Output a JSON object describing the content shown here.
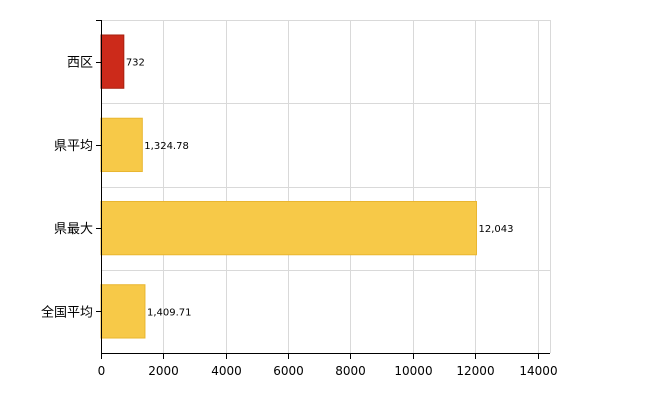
{
  "chart_data": {
    "type": "bar",
    "orientation": "horizontal",
    "categories": [
      "西区",
      "県平均",
      "県最大",
      "全国平均"
    ],
    "values": [
      732,
      1324.78,
      12043,
      1409.71
    ],
    "value_labels": [
      "732",
      "1,324.78",
      "12,043",
      "1,409.71"
    ],
    "bar_colors": [
      "#cc2a1a",
      "#f7c948",
      "#f7c948",
      "#f7c948"
    ],
    "xlim": [
      0,
      14400
    ],
    "x_ticks": [
      0,
      2000,
      4000,
      6000,
      8000,
      10000,
      12000,
      14000
    ],
    "x_tick_labels": [
      "0",
      "2000",
      "4000",
      "6000",
      "8000",
      "10000",
      "12000",
      "14000"
    ],
    "grid": true,
    "legend": "none"
  }
}
